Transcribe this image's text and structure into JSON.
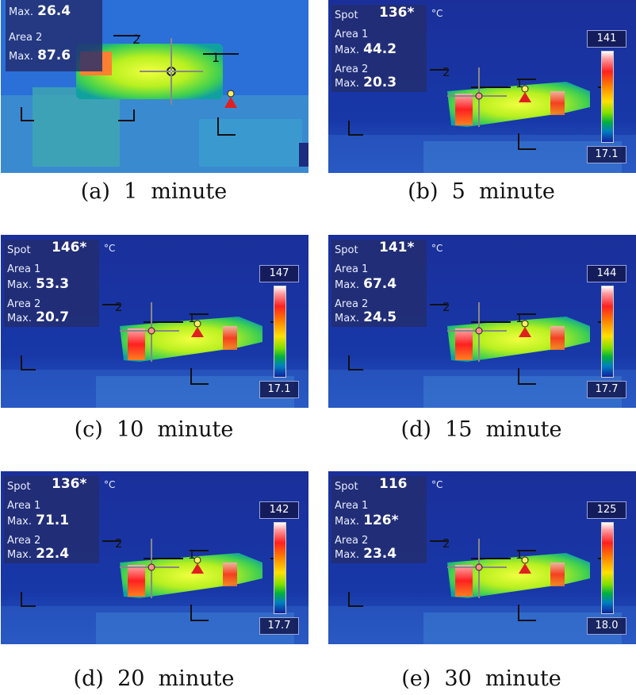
{
  "panels": [
    {
      "caption": "(a)  1  minute",
      "spot_label": "",
      "spot": "",
      "unit": "",
      "area1_label": "",
      "area1_max_label": "Max.",
      "area1_max": "26.4",
      "area2_label": "Area 2",
      "area2_max_label": "Max.",
      "area2_max": "87.6",
      "scale_top": "",
      "scale_bottom": ""
    },
    {
      "caption": "(b)  5  minute",
      "spot_label": "Spot",
      "spot": "136*",
      "unit": "°C",
      "area1_label": "Area 1",
      "area1_max_label": "Max.",
      "area1_max": "44.2",
      "area2_label": "Area 2",
      "area2_max_label": "Max.",
      "area2_max": "20.3",
      "scale_top": "141",
      "scale_bottom": "17.1"
    },
    {
      "caption": "(c)  10  minute",
      "spot_label": "Spot",
      "spot": "146*",
      "unit": "°C",
      "area1_label": "Area 1",
      "area1_max_label": "Max.",
      "area1_max": "53.3",
      "area2_label": "Area 2",
      "area2_max_label": "Max.",
      "area2_max": "20.7",
      "scale_top": "147",
      "scale_bottom": "17.1"
    },
    {
      "caption": "(d)  15  minute",
      "spot_label": "Spot",
      "spot": "141*",
      "unit": "°C",
      "area1_label": "Area 1",
      "area1_max_label": "Max.",
      "area1_max": "67.4",
      "area2_label": "Area 2",
      "area2_max_label": "Max.",
      "area2_max": "24.5",
      "scale_top": "144",
      "scale_bottom": "17.7"
    },
    {
      "caption": "(d)  20  minute",
      "spot_label": "Spot",
      "spot": "136*",
      "unit": "°C",
      "area1_label": "Area 1",
      "area1_max_label": "Max.",
      "area1_max": "71.1",
      "area2_label": "Area 2",
      "area2_max_label": "Max.",
      "area2_max": "22.4",
      "scale_top": "142",
      "scale_bottom": "17.7"
    },
    {
      "caption": "(e)  30  minute",
      "spot_label": "Spot",
      "spot": "116",
      "unit": "°C",
      "area1_label": "Area 1",
      "area1_max_label": "Max.",
      "area1_max": "126*",
      "area2_label": "Area 2",
      "area2_max_label": "Max.",
      "area2_max": "23.4",
      "scale_top": "125",
      "scale_bottom": "18.0"
    }
  ],
  "markers": {
    "area1": "1",
    "area2": "2"
  }
}
